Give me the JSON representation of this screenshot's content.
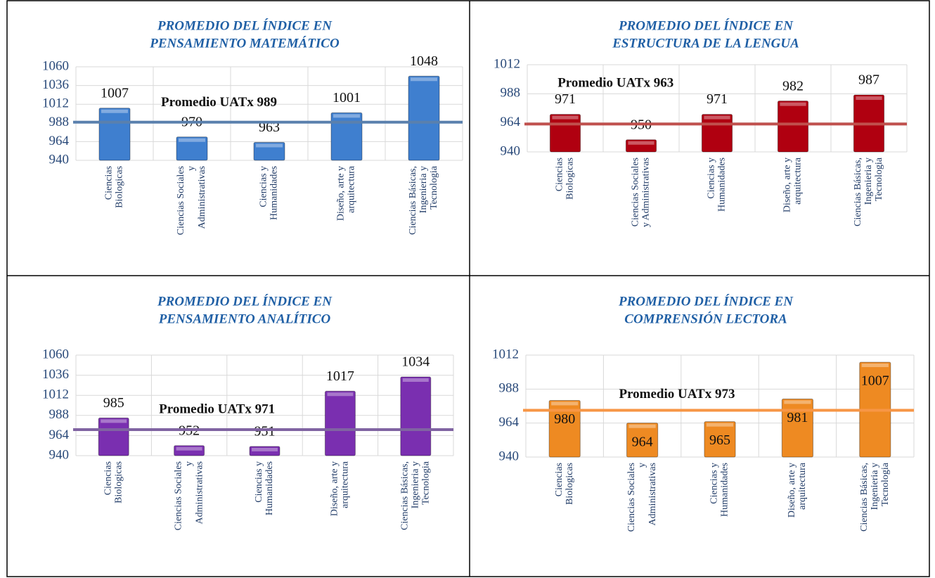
{
  "chart_data": [
    {
      "type": "bar",
      "title": [
        "PROMEDIO DEL ÍNDICE EN",
        "PENSAMIENTO MATEMÁTICO"
      ],
      "categories": [
        [
          "Ciencias",
          "Biologicas"
        ],
        [
          "Ciencias Sociales",
          "y",
          "Administrativas"
        ],
        [
          "Ciencias y",
          "Humanidades"
        ],
        [
          "Diseño, arte y",
          "arquitectura"
        ],
        [
          "Ciencias Básicas,",
          "Ingenieria y",
          "Tecnologia"
        ]
      ],
      "values": [
        1007,
        970,
        963,
        1001,
        1048
      ],
      "color": "#3f7fcf",
      "label_position": "above",
      "ylim": [
        940,
        1060
      ],
      "yticks": [
        940,
        964,
        988,
        1012,
        1036,
        1060
      ],
      "grid": true,
      "reference": {
        "label": "Promedio UATx 989",
        "value": 989,
        "color": "#5a80ad"
      }
    },
    {
      "type": "bar",
      "title": [
        "PROMEDIO DEL ÍNDICE EN",
        "ESTRUCTURA DE LA LENGUA"
      ],
      "categories": [
        [
          "Ciencias",
          "Biologicas"
        ],
        [
          "Ciencias Sociales",
          "y Administrativas"
        ],
        [
          "Ciencias y",
          "Humanidades"
        ],
        [
          "Diseño, arte y",
          "arquitectura"
        ],
        [
          "Ciencias Básicas,",
          "Ingenieria y",
          "Tecnologia"
        ]
      ],
      "values": [
        971,
        950,
        971,
        982,
        987
      ],
      "color": "#b00010",
      "label_position": "above",
      "ylim": [
        940,
        1012
      ],
      "yticks": [
        940,
        964,
        988,
        1012
      ],
      "grid": true,
      "reference": {
        "label": "Promedio UATx 963",
        "value": 963,
        "color": "#c0504d"
      }
    },
    {
      "type": "bar",
      "title": [
        "PROMEDIO DEL ÍNDICE EN",
        "PENSAMIENTO ANALÍTICO"
      ],
      "categories": [
        [
          "Ciencias",
          "Biologicas"
        ],
        [
          "Ciencias Sociales",
          "y",
          "Administrativas"
        ],
        [
          "Ciencias y",
          "Humanidades"
        ],
        [
          "Diseño, arte y",
          "arquitectura"
        ],
        [
          "Ciencias Básicas,",
          "Ingenieria y",
          "Tecnologia"
        ]
      ],
      "values": [
        985,
        952,
        951,
        1017,
        1034
      ],
      "color": "#7a2fb0",
      "label_position": "above",
      "ylim": [
        940,
        1060
      ],
      "yticks": [
        940,
        964,
        988,
        1012,
        1036,
        1060
      ],
      "grid": true,
      "reference": {
        "label": "Promedio UATx 971",
        "value": 971,
        "color": "#8064a2"
      }
    },
    {
      "type": "bar",
      "title": [
        "PROMEDIO DEL ÍNDICE EN",
        "COMPRENSIÓN LECTORA"
      ],
      "categories": [
        [
          "Ciencias",
          "Biologicas"
        ],
        [
          "Ciencias Sociales",
          "y",
          "Administrativas"
        ],
        [
          "Ciencias y",
          "Humanidades"
        ],
        [
          "Diseño, arte y",
          "arquitectura"
        ],
        [
          "Ciencias Básicas,",
          "Ingenieria y",
          "Tecnologia"
        ]
      ],
      "values": [
        980,
        964,
        965,
        981,
        1007
      ],
      "color": "#ee8a22",
      "label_position": "inside",
      "ylim": [
        940,
        1012
      ],
      "yticks": [
        940,
        964,
        988,
        1012
      ],
      "grid": true,
      "reference": {
        "label": "Promedio UATx 973",
        "value": 973,
        "color": "#f79646"
      }
    }
  ]
}
